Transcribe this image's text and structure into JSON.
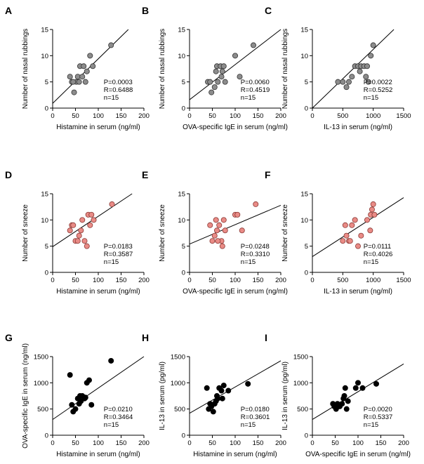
{
  "colors": {
    "gray": "#8c8c8c",
    "red": "#e98b86",
    "black": "#000000"
  },
  "chart_data": [
    {
      "type": "scatter",
      "panel": "A",
      "xlabel": "Histamine in serum  (ng/ml)",
      "ylabel": "Number of nasal rubbings",
      "xlim": [
        0,
        200
      ],
      "ylim": [
        0,
        15
      ],
      "xticks": [
        0,
        50,
        100,
        150,
        200
      ],
      "yticks": [
        0,
        5,
        10,
        15
      ],
      "xtick_labels": [
        "0",
        "50",
        "100",
        "150",
        "200"
      ],
      "ytick_labels": [
        "0",
        "5",
        "10",
        "15"
      ],
      "stats": [
        "P=0.0003",
        "R=0.6488",
        "n=15"
      ],
      "marker_color": "gray",
      "points": [
        [
          38,
          6
        ],
        [
          42,
          5
        ],
        [
          47,
          3
        ],
        [
          52,
          5
        ],
        [
          55,
          6
        ],
        [
          58,
          5
        ],
        [
          60,
          8
        ],
        [
          65,
          6
        ],
        [
          68,
          8
        ],
        [
          72,
          5
        ],
        [
          75,
          7
        ],
        [
          82,
          10
        ],
        [
          88,
          8
        ],
        [
          128,
          12
        ],
        [
          45,
          5
        ]
      ],
      "fit": {
        "intercept": 0.9,
        "slope": 0.085
      }
    },
    {
      "type": "scatter",
      "panel": "B",
      "xlabel": "OVA-specific IgE in serum  (ng/ml)",
      "ylabel": "Number of nasal rubbings",
      "xlim": [
        0,
        200
      ],
      "ylim": [
        0,
        15
      ],
      "xticks": [
        0,
        50,
        100,
        150,
        200
      ],
      "yticks": [
        0,
        5,
        10,
        15
      ],
      "xtick_labels": [
        "0",
        "50",
        "100",
        "150",
        "200"
      ],
      "ytick_labels": [
        "0",
        "5",
        "10",
        "15"
      ],
      "stats": [
        "P=0.0060",
        "R=0.4519",
        "n=15"
      ],
      "marker_color": "gray",
      "points": [
        [
          40,
          5
        ],
        [
          48,
          3
        ],
        [
          55,
          4
        ],
        [
          58,
          7
        ],
        [
          60,
          8
        ],
        [
          62,
          5
        ],
        [
          68,
          8
        ],
        [
          70,
          6
        ],
        [
          72,
          7
        ],
        [
          75,
          8
        ],
        [
          78,
          5
        ],
        [
          100,
          10
        ],
        [
          110,
          6
        ],
        [
          140,
          12
        ],
        [
          45,
          5
        ]
      ],
      "fit": {
        "intercept": 1.6,
        "slope": 0.067
      }
    },
    {
      "type": "scatter",
      "panel": "C",
      "xlabel": "IL-13 in serum  (ng/ml)",
      "ylabel": "Number of nasal rubbings",
      "xlim": [
        0,
        1500
      ],
      "ylim": [
        0,
        15
      ],
      "xticks": [
        0,
        500,
        1000,
        1500
      ],
      "yticks": [
        0,
        5,
        10,
        15
      ],
      "xtick_labels": [
        "0",
        "500",
        "1000",
        "1500"
      ],
      "ytick_labels": [
        "0",
        "5",
        "10",
        "15"
      ],
      "stats": [
        "P=0.0022",
        "R=0.5252",
        "n=15"
      ],
      "marker_color": "gray",
      "points": [
        [
          420,
          5
        ],
        [
          500,
          5
        ],
        [
          560,
          4
        ],
        [
          600,
          5
        ],
        [
          650,
          6
        ],
        [
          700,
          8
        ],
        [
          750,
          8
        ],
        [
          780,
          7
        ],
        [
          800,
          8
        ],
        [
          850,
          8
        ],
        [
          900,
          8
        ],
        [
          920,
          5
        ],
        [
          960,
          10
        ],
        [
          1000,
          12
        ],
        [
          880,
          6
        ]
      ],
      "fit": {
        "intercept": 0,
        "slope": 0.0112
      }
    },
    {
      "type": "scatter",
      "panel": "D",
      "xlabel": "Histamine in serum  (ng/ml)",
      "ylabel": "Number of sneeze",
      "xlim": [
        0,
        200
      ],
      "ylim": [
        0,
        15
      ],
      "xticks": [
        0,
        50,
        100,
        150,
        200
      ],
      "yticks": [
        0,
        5,
        10,
        15
      ],
      "xtick_labels": [
        "0",
        "50",
        "100",
        "150",
        "200"
      ],
      "ytick_labels": [
        "0",
        "5",
        "10",
        "15"
      ],
      "stats": [
        "P=0.0183",
        "R=0.3587",
        "n=15"
      ],
      "marker_color": "red",
      "points": [
        [
          38,
          8
        ],
        [
          42,
          9
        ],
        [
          45,
          9
        ],
        [
          50,
          6
        ],
        [
          55,
          6
        ],
        [
          58,
          7
        ],
        [
          62,
          8
        ],
        [
          65,
          10
        ],
        [
          70,
          6
        ],
        [
          75,
          5
        ],
        [
          78,
          11
        ],
        [
          82,
          9
        ],
        [
          85,
          11
        ],
        [
          90,
          10
        ],
        [
          130,
          13
        ]
      ],
      "fit": {
        "intercept": 4.9,
        "slope": 0.058
      }
    },
    {
      "type": "scatter",
      "panel": "E",
      "xlabel": "OVA-specific IgE in serum  (ng/ml)",
      "ylabel": "Number of sneeze",
      "xlim": [
        0,
        200
      ],
      "ylim": [
        0,
        15
      ],
      "xticks": [
        0,
        50,
        100,
        150,
        200
      ],
      "yticks": [
        0,
        5,
        10,
        15
      ],
      "xtick_labels": [
        "0",
        "50",
        "100",
        "150",
        "200"
      ],
      "ytick_labels": [
        "0",
        "5",
        "10",
        "15"
      ],
      "stats": [
        "P=0.0248",
        "R=0.3310",
        "n=15"
      ],
      "marker_color": "red",
      "points": [
        [
          45,
          9
        ],
        [
          50,
          6
        ],
        [
          55,
          7
        ],
        [
          58,
          10
        ],
        [
          60,
          8
        ],
        [
          65,
          9
        ],
        [
          70,
          6
        ],
        [
          72,
          5
        ],
        [
          75,
          10
        ],
        [
          78,
          8
        ],
        [
          100,
          11
        ],
        [
          105,
          11
        ],
        [
          115,
          8
        ],
        [
          145,
          13
        ],
        [
          62,
          6
        ]
      ],
      "fit": {
        "intercept": 5.4,
        "slope": 0.037
      }
    },
    {
      "type": "scatter",
      "panel": "F",
      "xlabel": "IL-13 in serum  (ng/ml)",
      "ylabel": "Number of sneeze",
      "xlim": [
        0,
        1500
      ],
      "ylim": [
        0,
        15
      ],
      "xticks": [
        0,
        500,
        1000,
        1500
      ],
      "yticks": [
        0,
        5,
        10,
        15
      ],
      "xtick_labels": [
        "0",
        "500",
        "1000",
        "1500"
      ],
      "ytick_labels": [
        "0",
        "5",
        "10",
        "15"
      ],
      "stats": [
        "P=0.0111",
        "R=0.4026",
        "n=15"
      ],
      "marker_color": "red",
      "points": [
        [
          500,
          6
        ],
        [
          540,
          9
        ],
        [
          560,
          7
        ],
        [
          600,
          6
        ],
        [
          620,
          6
        ],
        [
          650,
          9
        ],
        [
          700,
          10
        ],
        [
          750,
          5
        ],
        [
          800,
          7
        ],
        [
          900,
          10
        ],
        [
          950,
          8
        ],
        [
          960,
          11
        ],
        [
          980,
          12
        ],
        [
          1000,
          13
        ],
        [
          1020,
          11
        ]
      ],
      "fit": {
        "intercept": 3.0,
        "slope": 0.0075
      }
    },
    {
      "type": "scatter",
      "panel": "G",
      "xlabel": "Histamine in serum  (ng/ml)",
      "ylabel": "OVA-specific IgE in serum  (ng/ml)",
      "xlim": [
        0,
        200
      ],
      "ylim": [
        0,
        1500
      ],
      "xticks": [
        0,
        50,
        100,
        150,
        200
      ],
      "yticks": [
        0,
        500,
        1000,
        1500
      ],
      "xtick_labels": [
        "0",
        "50",
        "100",
        "150",
        "200"
      ],
      "ytick_labels": [
        "0",
        "500",
        "1000",
        "1500"
      ],
      "stats": [
        "P=0.0210",
        "R=0.3464",
        "n=15"
      ],
      "marker_color": "black",
      "points": [
        [
          38,
          1150
        ],
        [
          42,
          580
        ],
        [
          45,
          450
        ],
        [
          50,
          500
        ],
        [
          55,
          700
        ],
        [
          58,
          600
        ],
        [
          60,
          750
        ],
        [
          62,
          650
        ],
        [
          65,
          750
        ],
        [
          70,
          700
        ],
        [
          72,
          720
        ],
        [
          75,
          1000
        ],
        [
          80,
          1050
        ],
        [
          85,
          580
        ],
        [
          128,
          1420
        ]
      ],
      "fit": {
        "intercept": 300,
        "slope": 6.0
      }
    },
    {
      "type": "scatter",
      "panel": "H",
      "xlabel": "Histamine in serum  (ng/ml)",
      "ylabel": "IL-13 in serum  (pg/ml)",
      "xlim": [
        0,
        200
      ],
      "ylim": [
        0,
        1500
      ],
      "xticks": [
        0,
        50,
        100,
        150,
        200
      ],
      "yticks": [
        0,
        500,
        1000,
        1500
      ],
      "xtick_labels": [
        "0",
        "50",
        "100",
        "150",
        "200"
      ],
      "ytick_labels": [
        "0",
        "500",
        "1000",
        "1500"
      ],
      "stats": [
        "P=0.0180",
        "R=0.3601",
        "n=15"
      ],
      "marker_color": "black",
      "points": [
        [
          38,
          900
        ],
        [
          42,
          500
        ],
        [
          45,
          600
        ],
        [
          48,
          550
        ],
        [
          52,
          450
        ],
        [
          55,
          600
        ],
        [
          58,
          650
        ],
        [
          60,
          750
        ],
        [
          62,
          700
        ],
        [
          65,
          900
        ],
        [
          70,
          850
        ],
        [
          72,
          700
        ],
        [
          75,
          950
        ],
        [
          85,
          850
        ],
        [
          128,
          980
        ]
      ],
      "fit": {
        "intercept": 420,
        "slope": 5.0
      }
    },
    {
      "type": "scatter",
      "panel": "I",
      "xlabel": "OVA-specific IgE in serum  (ng/ml)",
      "ylabel": "IL-13 in serum  (pg/ml)",
      "xlim": [
        0,
        200
      ],
      "ylim": [
        0,
        1500
      ],
      "xticks": [
        0,
        50,
        100,
        150,
        200
      ],
      "yticks": [
        0,
        500,
        1000,
        1500
      ],
      "xtick_labels": [
        "0",
        "50",
        "100",
        "150",
        "200"
      ],
      "ytick_labels": [
        "0",
        "500",
        "1000",
        "1500"
      ],
      "stats": [
        "P=0.0020",
        "R=0.5337",
        "n=15"
      ],
      "marker_color": "black",
      "points": [
        [
          45,
          600
        ],
        [
          48,
          550
        ],
        [
          52,
          500
        ],
        [
          55,
          600
        ],
        [
          60,
          550
        ],
        [
          65,
          600
        ],
        [
          68,
          700
        ],
        [
          70,
          750
        ],
        [
          72,
          900
        ],
        [
          75,
          500
        ],
        [
          78,
          650
        ],
        [
          95,
          900
        ],
        [
          100,
          1000
        ],
        [
          110,
          900
        ],
        [
          140,
          980
        ]
      ],
      "fit": {
        "intercept": 300,
        "slope": 5.3
      }
    }
  ]
}
